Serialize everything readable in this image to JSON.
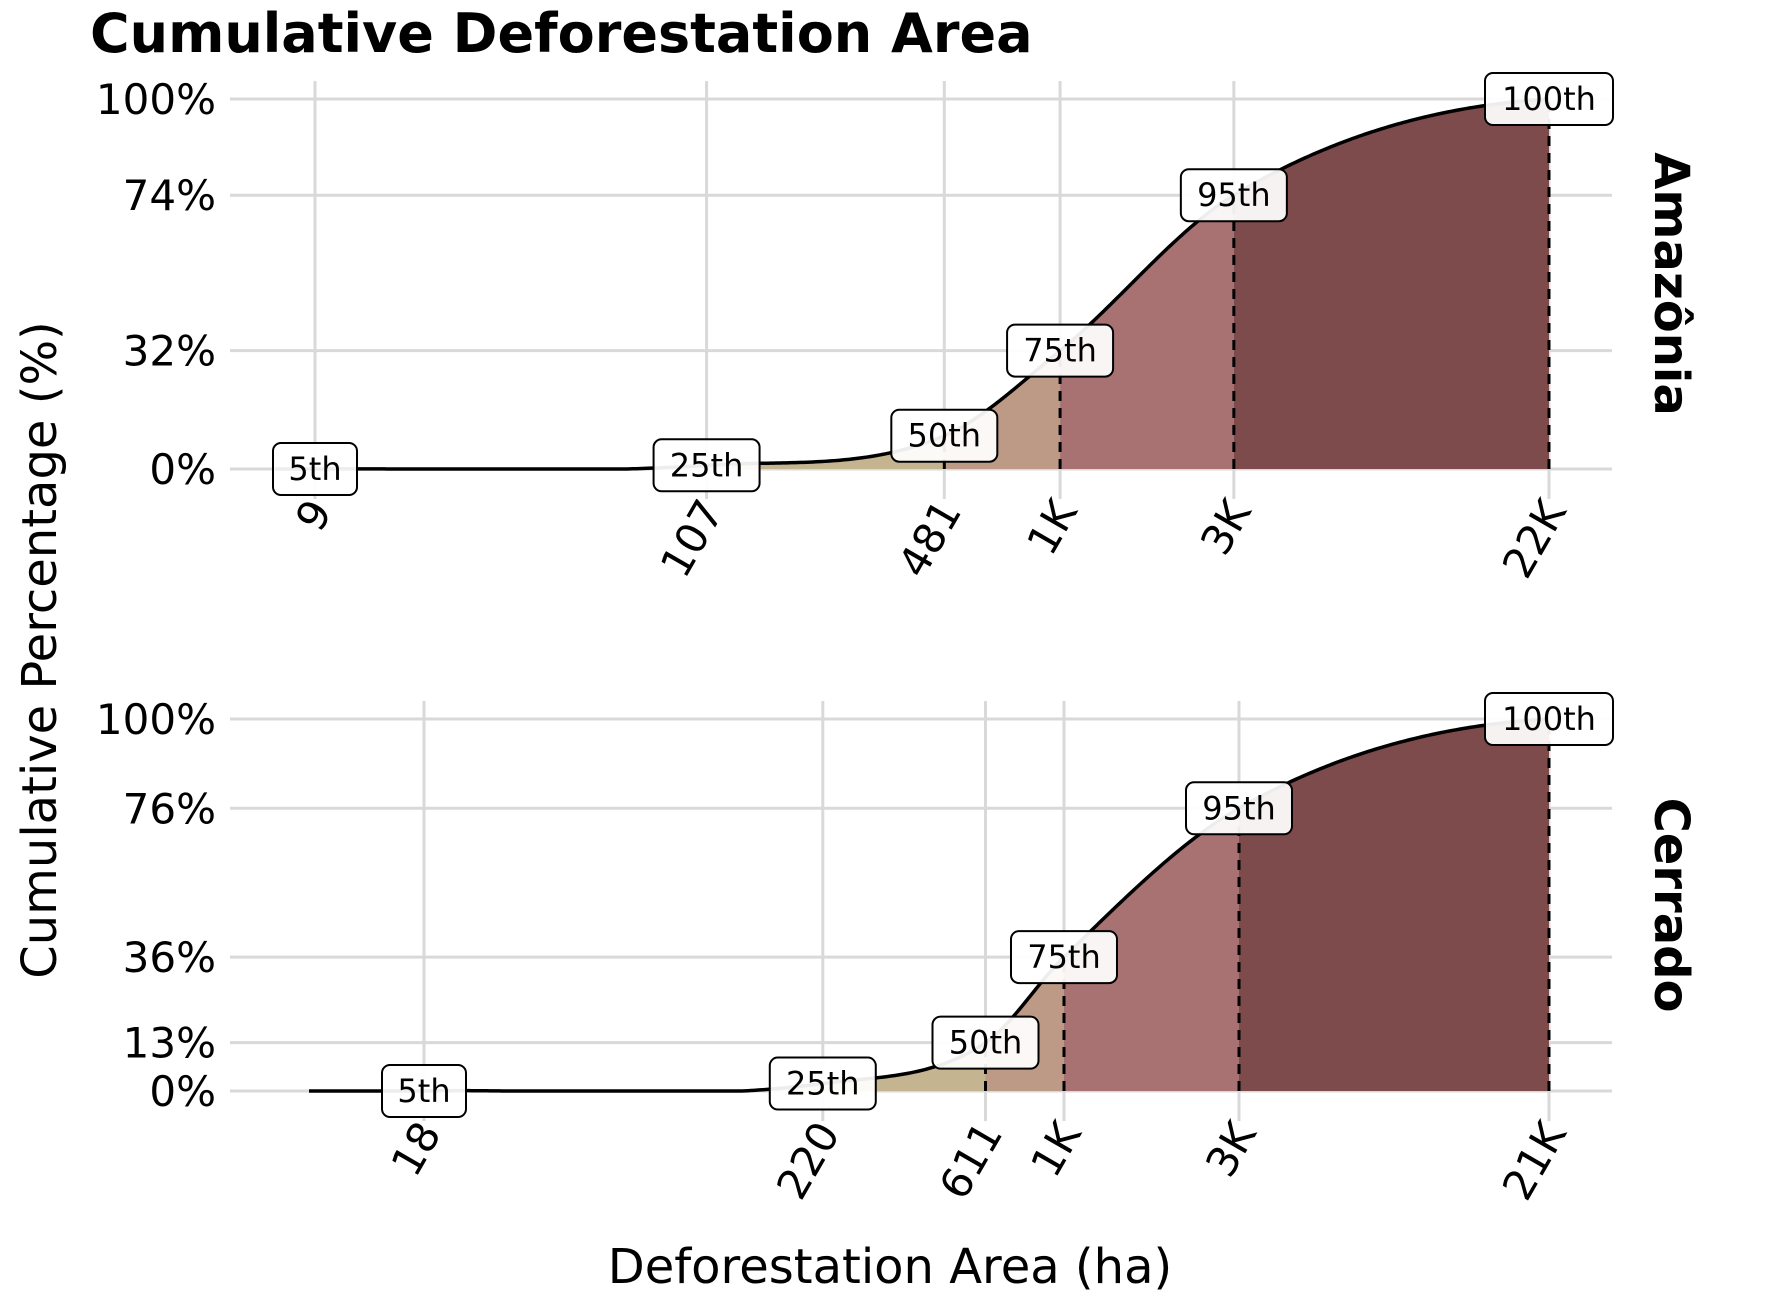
{
  "chart_data": {
    "type": "area",
    "title": "Cumulative Deforestation Area",
    "xlabel": "Deforestation Area (ha)",
    "ylabel": "Cumulative Percentage (%)",
    "x_scale": "log",
    "colors": {
      "band_5_25": "#c9c09a",
      "band_25_50": "#c4b490",
      "band_50_75": "#bd9a86",
      "band_75_95": "#a87272",
      "band_95_100": "#7d4b4b",
      "curve": "#000000",
      "grid": "#d9d9d9"
    },
    "panels": [
      {
        "name": "Amazônia",
        "percentiles": [
          {
            "label": "5th",
            "x": 9,
            "y": 0
          },
          {
            "label": "25th",
            "x": 107,
            "y": 1
          },
          {
            "label": "50th",
            "x": 481,
            "y": 9
          },
          {
            "label": "75th",
            "x": 1000,
            "y": 32
          },
          {
            "label": "95th",
            "x": 3000,
            "y": 74
          },
          {
            "label": "100th",
            "x": 22000,
            "y": 100
          }
        ],
        "y_ticks": [
          0,
          32,
          74,
          100
        ],
        "y_tick_labels": [
          "0%",
          "32%",
          "74%",
          "100%"
        ],
        "x_ticks": [
          9,
          107,
          481,
          1000,
          3000,
          22000
        ],
        "x_tick_labels": [
          "9",
          "107",
          "481",
          "1K",
          "3K",
          "22K"
        ]
      },
      {
        "name": "Cerrado",
        "percentiles": [
          {
            "label": "5th",
            "x": 18,
            "y": 0
          },
          {
            "label": "25th",
            "x": 220,
            "y": 2
          },
          {
            "label": "50th",
            "x": 611,
            "y": 13
          },
          {
            "label": "75th",
            "x": 1000,
            "y": 36
          },
          {
            "label": "95th",
            "x": 3000,
            "y": 76
          },
          {
            "label": "100th",
            "x": 21000,
            "y": 100
          }
        ],
        "y_ticks": [
          0,
          13,
          36,
          76,
          100
        ],
        "y_tick_labels": [
          "0%",
          "13%",
          "36%",
          "76%",
          "100%"
        ],
        "x_ticks": [
          18,
          220,
          611,
          1000,
          3000,
          21000
        ],
        "x_tick_labels": [
          "18",
          "220",
          "611",
          "1K",
          "3K",
          "21K"
        ]
      }
    ]
  }
}
